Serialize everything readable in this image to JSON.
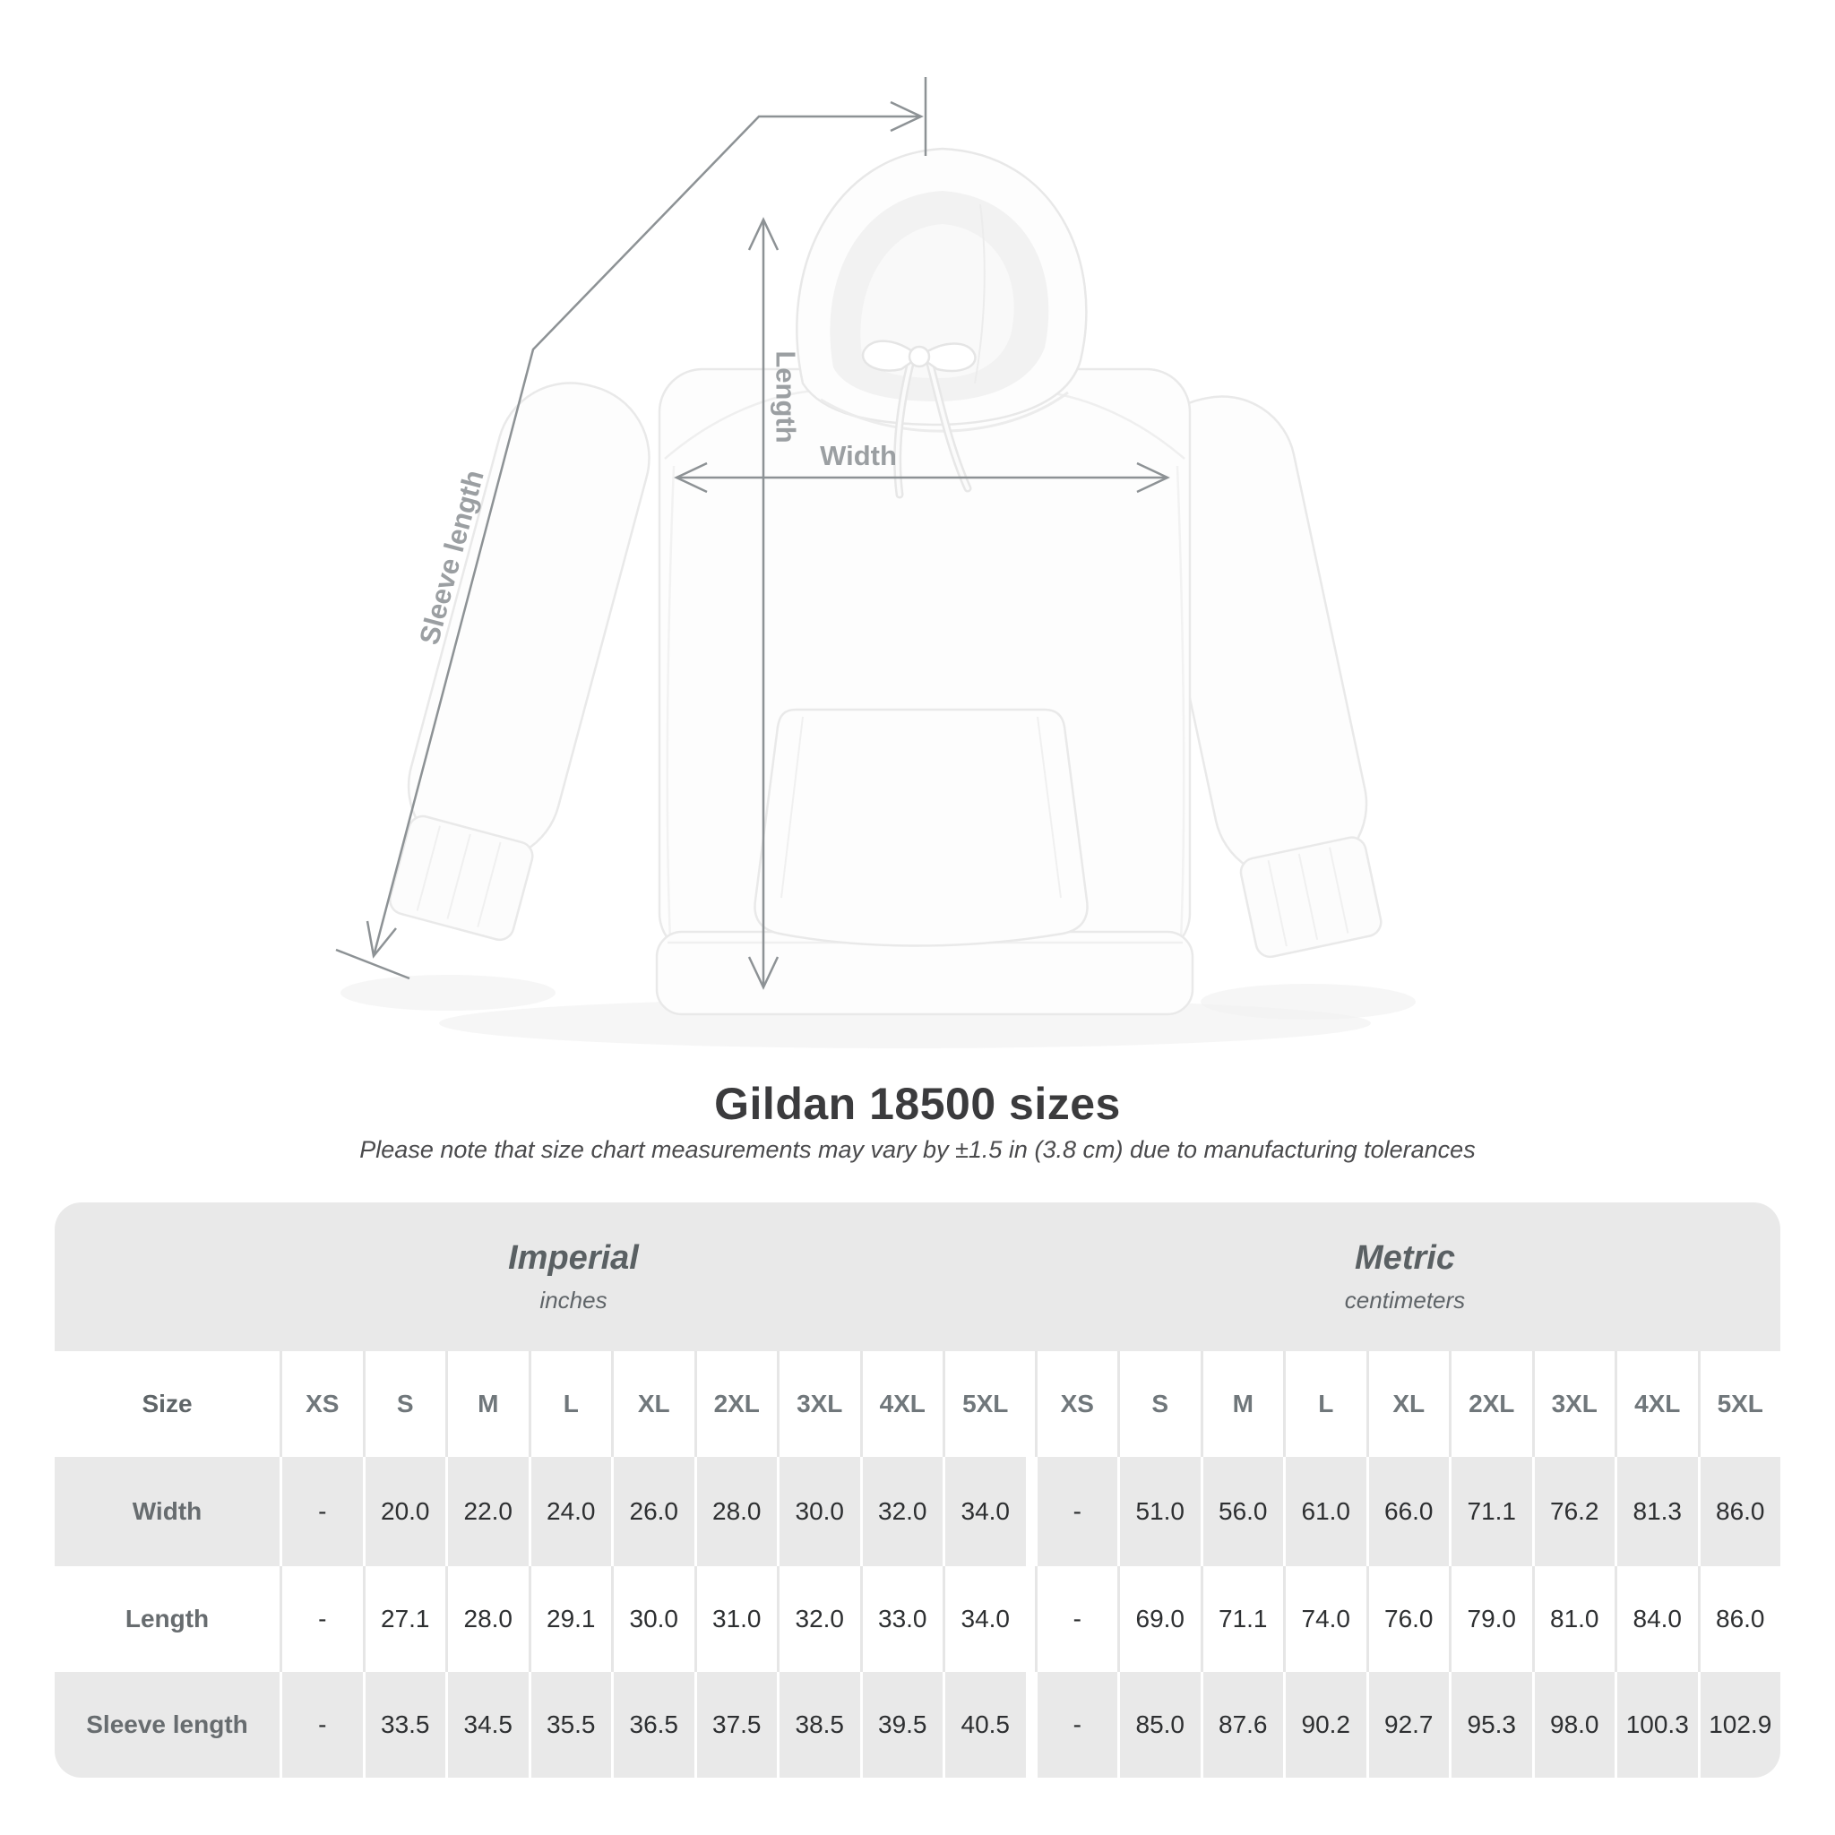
{
  "diagram": {
    "length_label": "Length",
    "width_label": "Width",
    "sleeve_label": "Sleeve length"
  },
  "title": "Gildan 18500 sizes",
  "subtitle": "Please note that size chart measurements may vary by ±1.5 in (3.8 cm) due to manufacturing tolerances",
  "table": {
    "imperial": {
      "label": "Imperial",
      "unit": "inches"
    },
    "metric": {
      "label": "Metric",
      "unit": "centimeters"
    },
    "corner": "Size",
    "sizes": [
      "XS",
      "S",
      "M",
      "L",
      "XL",
      "2XL",
      "3XL",
      "4XL",
      "5XL"
    ],
    "rows": [
      {
        "label": "Width",
        "imperial": [
          "-",
          "20.0",
          "22.0",
          "24.0",
          "26.0",
          "28.0",
          "30.0",
          "32.0",
          "34.0"
        ],
        "metric": [
          "-",
          "51.0",
          "56.0",
          "61.0",
          "66.0",
          "71.1",
          "76.2",
          "81.3",
          "86.0"
        ]
      },
      {
        "label": "Length",
        "imperial": [
          "-",
          "27.1",
          "28.0",
          "29.1",
          "30.0",
          "31.0",
          "32.0",
          "33.0",
          "34.0"
        ],
        "metric": [
          "-",
          "69.0",
          "71.1",
          "74.0",
          "76.0",
          "79.0",
          "81.0",
          "84.0",
          "86.0"
        ]
      },
      {
        "label": "Sleeve length",
        "imperial": [
          "-",
          "33.5",
          "34.5",
          "35.5",
          "36.5",
          "37.5",
          "38.5",
          "39.5",
          "40.5"
        ],
        "metric": [
          "-",
          "85.0",
          "87.6",
          "90.2",
          "92.7",
          "95.3",
          "98.0",
          "100.3",
          "102.9"
        ]
      }
    ]
  },
  "colors": {
    "band_gray": "#e9e9e9",
    "measure_line": "#8d9295",
    "measure_label": "#9b9fa2",
    "number_text": "#2d2f31",
    "size_header_text": "#70777b"
  }
}
